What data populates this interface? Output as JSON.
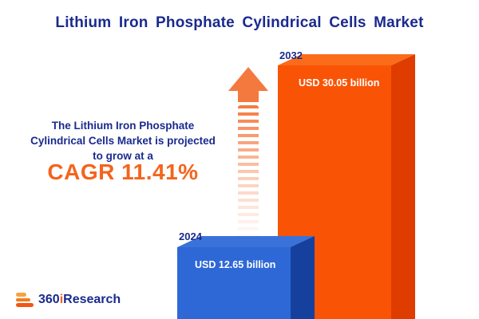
{
  "title": "Lithium Iron Phosphate Cylindrical Cells Market",
  "description": {
    "line1": "The Lithium Iron Phosphate",
    "line2": "Cylindrical Cells Market is projected",
    "line3": "to grow at a",
    "cagr_text": "CAGR 11.41%"
  },
  "chart_data": {
    "type": "bar",
    "title": "Lithium Iron Phosphate Cylindrical Cells Market",
    "categories": [
      "2024",
      "2032"
    ],
    "values": [
      12.65,
      30.05
    ],
    "unit": "USD billion",
    "value_labels": [
      "USD 12.65 billion",
      "USD 30.05 billion"
    ],
    "cagr_percent": 11.41,
    "ylim": [
      0,
      32
    ],
    "legend": "none",
    "grid": false,
    "bar_colors": {
      "2024": "#2e68d6",
      "2032": "#f95406"
    }
  },
  "colors": {
    "brand_navy": "#1a2a8e",
    "accent_orange": "#f4641d",
    "bar_2024_front": "#2e68d6",
    "bar_2024_side": "#16409e",
    "bar_2032_front": "#f95406",
    "bar_2032_side": "#df3d00",
    "arrow_orange": "#f4793f"
  },
  "logo": {
    "part_360": "360",
    "part_i": "i",
    "part_research": "Research"
  }
}
